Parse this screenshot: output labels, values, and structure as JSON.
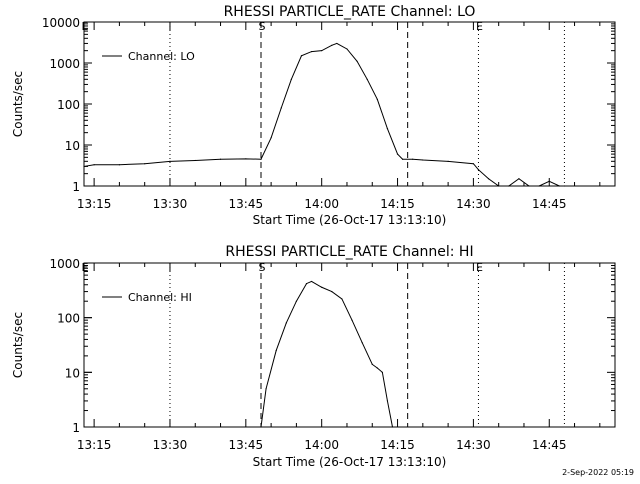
{
  "footer": {
    "date_stamp": "2-Sep-2022 05:19"
  },
  "chart_data": [
    {
      "type": "line",
      "title": "RHESSI PARTICLE_RATE Channel: LO",
      "xlabel": "Start Time (26-Oct-17 13:13:10)",
      "ylabel": "Counts/sec",
      "xlim": [
        "13:13",
        "14:58"
      ],
      "ylim": [
        1,
        10000
      ],
      "yscale": "log",
      "x_ticks": [
        "13:15",
        "13:30",
        "13:45",
        "14:00",
        "14:15",
        "14:30",
        "14:45"
      ],
      "y_ticks": [
        "1",
        "10",
        "100",
        "1000",
        "10000"
      ],
      "legend": {
        "position": "top-left",
        "entries": [
          "Channel: LO"
        ]
      },
      "markers": [
        {
          "time": "13:48",
          "style": "dashed",
          "label": "S"
        },
        {
          "time": "14:17",
          "style": "dashed",
          "label": ""
        },
        {
          "time": "13:30",
          "style": "dotted",
          "label": ""
        },
        {
          "time": "14:31",
          "style": "dotted",
          "label": "E"
        },
        {
          "time": "14:48",
          "style": "dotted",
          "label": ""
        },
        {
          "time": "13:13",
          "style": "none",
          "label": "E"
        }
      ],
      "series": [
        {
          "name": "Channel: LO",
          "x": [
            "13:13",
            "13:15",
            "13:20",
            "13:25",
            "13:30",
            "13:35",
            "13:40",
            "13:45",
            "13:48",
            "13:50",
            "13:52",
            "13:54",
            "13:56",
            "13:58",
            "14:00",
            "14:02",
            "14:03",
            "14:05",
            "14:07",
            "14:09",
            "14:11",
            "14:13",
            "14:15",
            "14:16",
            "14:18",
            "14:20",
            "14:25",
            "14:30",
            "14:31",
            "14:33",
            "14:35",
            "14:37",
            "14:39",
            "14:41",
            "14:43",
            "14:45",
            "14:47",
            "14:48"
          ],
          "values": [
            3,
            3.3,
            3.3,
            3.5,
            4,
            4.2,
            4.5,
            4.6,
            4.5,
            15,
            80,
            400,
            1500,
            1900,
            2000,
            2700,
            3000,
            2200,
            1100,
            400,
            130,
            25,
            6,
            4.5,
            4.5,
            4.3,
            4,
            3.5,
            2.5,
            1.5,
            1,
            1,
            1.5,
            1,
            1,
            1.3,
            1,
            1
          ]
        }
      ]
    },
    {
      "type": "line",
      "title": "RHESSI PARTICLE_RATE Channel: HI",
      "xlabel": "Start Time (26-Oct-17 13:13:10)",
      "ylabel": "Counts/sec",
      "xlim": [
        "13:13",
        "14:58"
      ],
      "ylim": [
        1,
        1000
      ],
      "yscale": "log",
      "x_ticks": [
        "13:15",
        "13:30",
        "13:45",
        "14:00",
        "14:15",
        "14:30",
        "14:45"
      ],
      "y_ticks": [
        "1",
        "10",
        "100",
        "1000"
      ],
      "legend": {
        "position": "top-left",
        "entries": [
          "Channel: HI"
        ]
      },
      "markers": [
        {
          "time": "13:48",
          "style": "dashed",
          "label": "S"
        },
        {
          "time": "14:17",
          "style": "dashed",
          "label": ""
        },
        {
          "time": "13:30",
          "style": "dotted",
          "label": ""
        },
        {
          "time": "14:31",
          "style": "dotted",
          "label": "E"
        },
        {
          "time": "14:48",
          "style": "dotted",
          "label": ""
        },
        {
          "time": "13:13",
          "style": "none",
          "label": "E"
        }
      ],
      "series": [
        {
          "name": "Channel: HI",
          "x": [
            "13:48",
            "13:49",
            "13:51",
            "13:53",
            "13:55",
            "13:57",
            "13:58",
            "14:00",
            "14:02",
            "14:04",
            "14:06",
            "14:08",
            "14:10",
            "14:11",
            "14:12",
            "14:13",
            "14:14"
          ],
          "values": [
            1,
            5,
            25,
            80,
            200,
            420,
            460,
            360,
            300,
            220,
            90,
            35,
            14,
            12,
            10,
            3,
            1
          ]
        }
      ]
    }
  ]
}
